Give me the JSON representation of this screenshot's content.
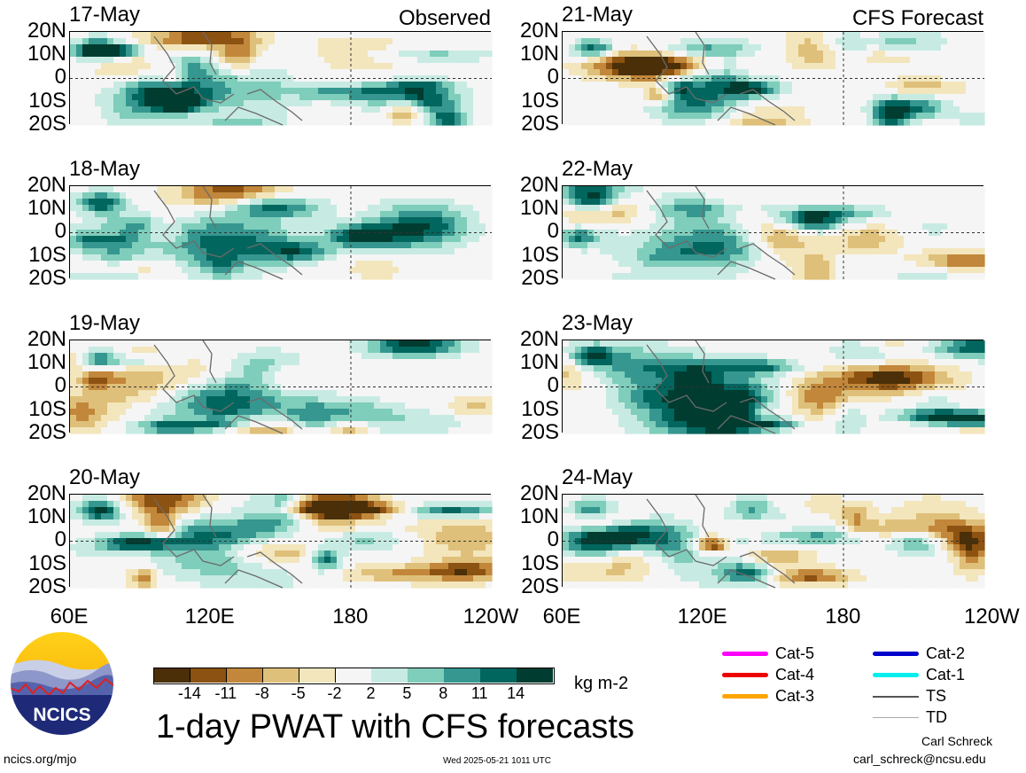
{
  "title": "1-day PWAT with CFS forecasts",
  "units": "kg m-2",
  "site_url": "ncics.org/mjo",
  "timestamp": "Wed 2025-05-21 1011 UTC",
  "author": "Carl Schreck",
  "email": "carl_schreck@ncsu.edu",
  "logo_text": "NCICS",
  "observed_label": "Observed",
  "forecast_label": "CFS Forecast",
  "lat_labels": [
    "20N",
    "10N",
    "0",
    "10S",
    "20S"
  ],
  "lon_labels": [
    "60E",
    "120E",
    "180",
    "120W"
  ],
  "observed_panels": [
    {
      "date": "17-May"
    },
    {
      "date": "18-May"
    },
    {
      "date": "19-May"
    },
    {
      "date": "20-May"
    }
  ],
  "forecast_panels": [
    {
      "date": "21-May"
    },
    {
      "date": "22-May"
    },
    {
      "date": "23-May"
    },
    {
      "date": "24-May"
    }
  ],
  "colorbar": {
    "labels": [
      "-14",
      "-11",
      "-8",
      "-5",
      "-2",
      "2",
      "5",
      "8",
      "11",
      "14"
    ],
    "colors": [
      "#4a2f08",
      "#8c5211",
      "#c2873a",
      "#dfc07a",
      "#f3e6bd",
      "#f5f5f5",
      "#c7ebe3",
      "#7fcdbb",
      "#35978f",
      "#01665e",
      "#003c30"
    ]
  },
  "storm_legend": [
    {
      "label": "Cat-5",
      "color": "#ff00ff"
    },
    {
      "label": "Cat-4",
      "color": "#ee0000"
    },
    {
      "label": "Cat-3",
      "color": "#ffa500"
    },
    {
      "label": "Cat-2",
      "color": "#0000cc"
    },
    {
      "label": "Cat-1",
      "color": "#00eeee"
    },
    {
      "label": "TS",
      "color": "#555555"
    },
    {
      "label": "TD",
      "color": "#aaaaaa"
    }
  ]
}
